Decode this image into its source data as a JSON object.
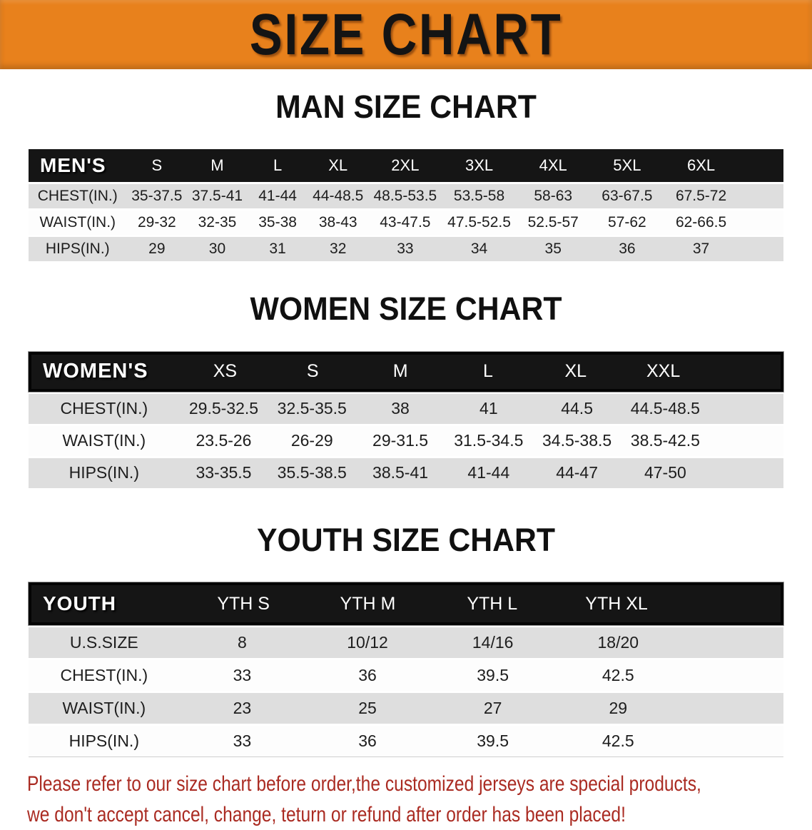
{
  "banner": {
    "title": "SIZE CHART"
  },
  "sections": [
    {
      "heading": "MAN SIZE CHART",
      "header_label": "MEN'S",
      "columns": [
        "S",
        "M",
        "L",
        "XL",
        "2XL",
        "3XL",
        "4XL",
        "5XL",
        "6XL"
      ],
      "rows": [
        {
          "label": "CHEST(IN.)",
          "values": [
            "35-37.5",
            "37.5-41",
            "41-44",
            "44-48.5",
            "48.5-53.5",
            "53.5-58",
            "58-63",
            "63-67.5",
            "67.5-72"
          ]
        },
        {
          "label": "WAIST(IN.)",
          "values": [
            "29-32",
            "32-35",
            "35-38",
            "38-43",
            "43-47.5",
            "47.5-52.5",
            "52.5-57",
            "57-62",
            "62-66.5"
          ]
        },
        {
          "label": "HIPS(IN.)",
          "values": [
            "29",
            "30",
            "31",
            "32",
            "33",
            "34",
            "35",
            "36",
            "37"
          ]
        }
      ]
    },
    {
      "heading": "WOMEN SIZE CHART",
      "header_label": "WOMEN'S",
      "columns": [
        "XS",
        "S",
        "M",
        "L",
        "XL",
        "XXL"
      ],
      "rows": [
        {
          "label": "CHEST(IN.)",
          "values": [
            "29.5-32.5",
            "32.5-35.5",
            "38",
            "41",
            "44.5",
            "44.5-48.5"
          ]
        },
        {
          "label": "WAIST(IN.)",
          "values": [
            "23.5-26",
            "26-29",
            "29-31.5",
            "31.5-34.5",
            "34.5-38.5",
            "38.5-42.5"
          ]
        },
        {
          "label": "HIPS(IN.)",
          "values": [
            "33-35.5",
            "35.5-38.5",
            "38.5-41",
            "41-44",
            "44-47",
            "47-50"
          ]
        }
      ]
    },
    {
      "heading": "YOUTH SIZE CHART",
      "header_label": "YOUTH",
      "columns": [
        "YTH S",
        "YTH M",
        "YTH L",
        "YTH XL"
      ],
      "rows": [
        {
          "label": "U.S.SIZE",
          "values": [
            "8",
            "10/12",
            "14/16",
            "18/20"
          ]
        },
        {
          "label": "CHEST(IN.)",
          "values": [
            "33",
            "36",
            "39.5",
            "42.5"
          ]
        },
        {
          "label": "WAIST(IN.)",
          "values": [
            "23",
            "25",
            "27",
            "29"
          ]
        },
        {
          "label": "HIPS(IN.)",
          "values": [
            "33",
            "36",
            "39.5",
            "42.5"
          ]
        }
      ]
    }
  ],
  "footer": {
    "line1": "Please refer to our size chart before order,the customized jerseys are special products,",
    "line2": "we don't accept cancel, change, teturn or refund after order has been placed!"
  },
  "colors": {
    "banner_orange": "#E8811C",
    "header_black": "#151515",
    "row_gray": "#DEDEDE",
    "footer_red": "#AA2B22"
  }
}
